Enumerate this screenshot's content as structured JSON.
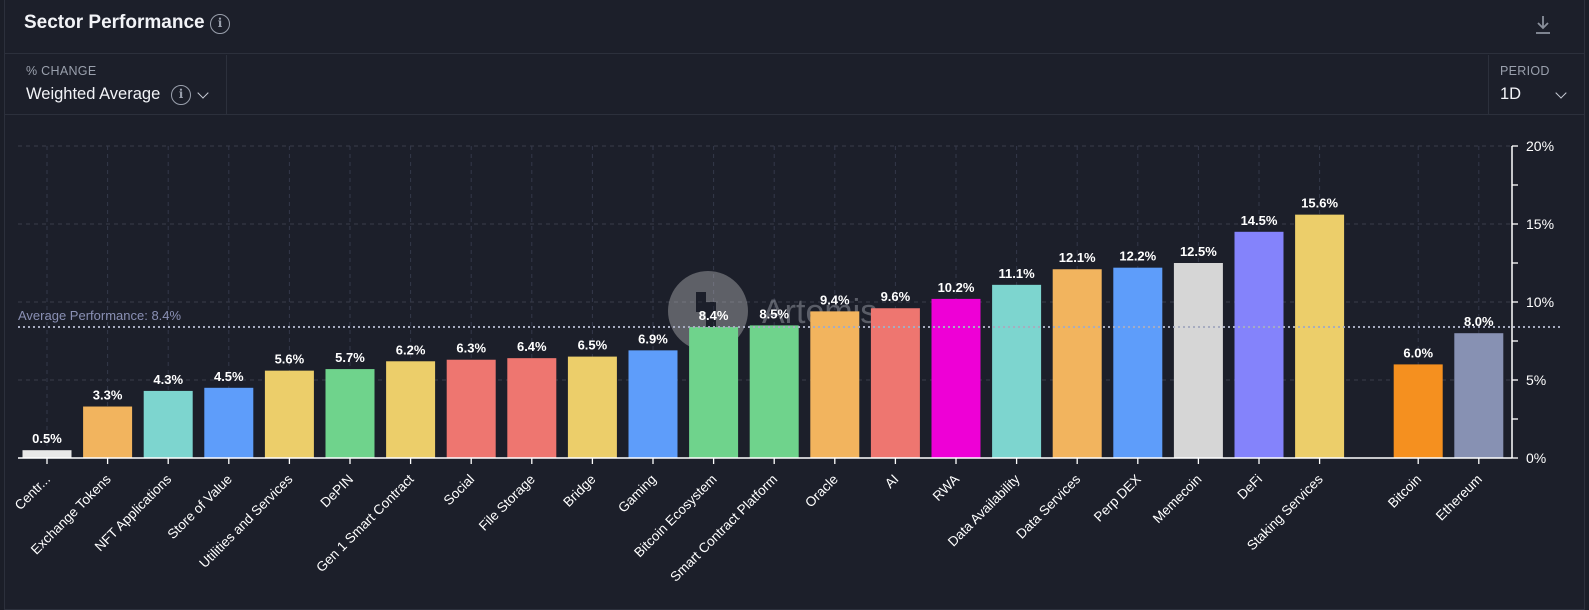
{
  "header": {
    "title": "Sector Performance",
    "info_icon": "info-icon",
    "download_icon": "download-icon"
  },
  "controls": {
    "metric_label": "% CHANGE",
    "metric_value": "Weighted Average",
    "period_label": "PERIOD",
    "period_value": "1D"
  },
  "watermark": "Artemis",
  "chart_data": {
    "type": "bar",
    "categories": [
      "Centr...",
      "Exchange Tokens",
      "NFT Applications",
      "Store of Value",
      "Utilities and Services",
      "DePIN",
      "Gen 1 Smart Contract",
      "Social",
      "File Storage",
      "Bridge",
      "Gaming",
      "Bitcoin Ecosystem",
      "Smart Contract Platform",
      "Oracle",
      "AI",
      "RWA",
      "Data Availability",
      "Data Services",
      "Perp DEX",
      "Memecoin",
      "DeFi",
      "Staking Services",
      "Bitcoin",
      "Ethereum"
    ],
    "values": [
      0.5,
      3.3,
      4.3,
      4.5,
      5.6,
      5.7,
      6.2,
      6.3,
      6.4,
      6.5,
      6.9,
      8.4,
      8.5,
      9.4,
      9.6,
      10.2,
      11.1,
      12.1,
      12.2,
      12.5,
      14.5,
      15.6,
      6.0,
      8.0
    ],
    "data_labels": [
      "0.5%",
      "3.3%",
      "4.3%",
      "4.5%",
      "5.6%",
      "5.7%",
      "6.2%",
      "6.3%",
      "6.4%",
      "6.5%",
      "6.9%",
      "8.4%",
      "8.5%",
      "9.4%",
      "9.6%",
      "10.2%",
      "11.1%",
      "12.1%",
      "12.2%",
      "12.5%",
      "14.5%",
      "15.6%",
      "6.0%",
      "8.0%"
    ],
    "colors": [
      "#e8e8e8",
      "#f2b45e",
      "#7dd5cf",
      "#5e9dfa",
      "#ecce6a",
      "#6fd38c",
      "#ecce6a",
      "#ee7670",
      "#ee7670",
      "#ecce6a",
      "#5e9dfa",
      "#6fd38c",
      "#6fd38c",
      "#f2b45e",
      "#ee7670",
      "#ee00d6",
      "#7dd5cf",
      "#f2b45e",
      "#5e9dfa",
      "#d6d6d6",
      "#8483fb",
      "#ecce6a",
      "#f5901f",
      "#8791b3"
    ],
    "ylim": [
      0,
      20
    ],
    "yticks": [
      "0%",
      "5%",
      "10%",
      "15%",
      "20%"
    ],
    "average": 8.4,
    "average_label": "Average Performance: 8.4%",
    "grid": true,
    "ylabel": "",
    "xlabel": ""
  }
}
